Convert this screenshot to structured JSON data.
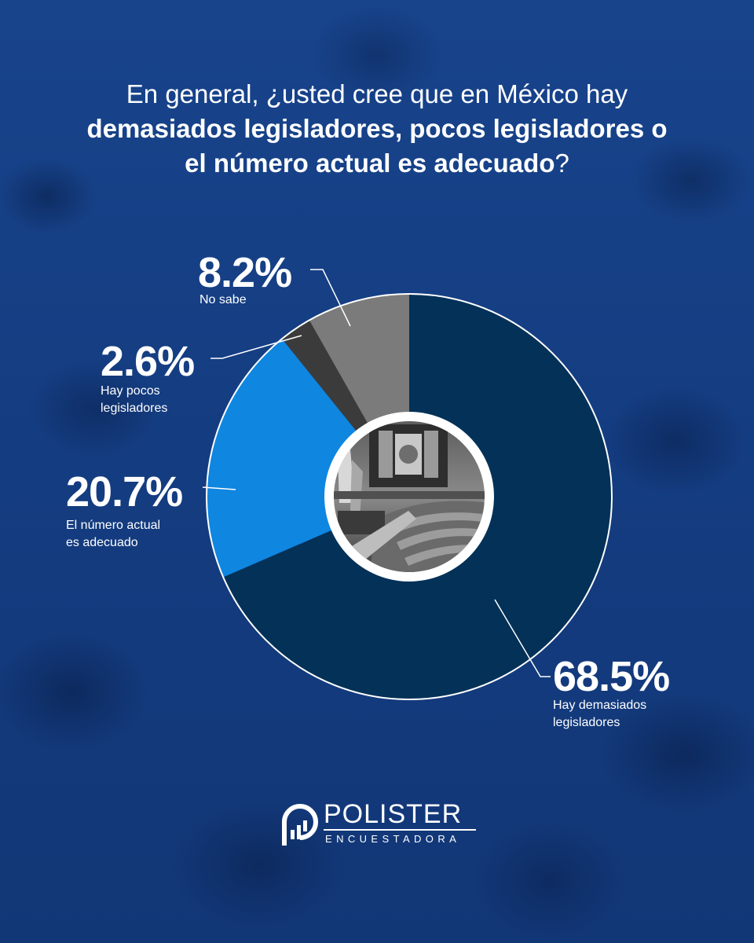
{
  "title": {
    "part1": "En general, ¿usted cree que en México hay",
    "part2": "demasiados legisladores, pocos legisladores o",
    "part3": "el número actual es adecuado",
    "part4": "?"
  },
  "chart_data": {
    "type": "pie",
    "variant": "donut",
    "slices": [
      {
        "label_pct": "68.5%",
        "value": 68.5,
        "caption_lines": [
          "Hay demasiados",
          "legisladores"
        ],
        "color": "#033158"
      },
      {
        "label_pct": "20.7%",
        "value": 20.7,
        "caption_lines": [
          "El número actual",
          "es adecuado"
        ],
        "color": "#0f86e0"
      },
      {
        "label_pct": "2.6%",
        "value": 2.6,
        "caption_lines": [
          "Hay pocos",
          "legisladores"
        ],
        "color": "#3b3b3b"
      },
      {
        "label_pct": "8.2%",
        "value": 8.2,
        "caption_lines": [
          "No sabe"
        ],
        "color": "#7b7b7b"
      }
    ],
    "start": "top, clockwise",
    "center_image": "parliament-chamber photo (grayscale)"
  },
  "colors": {
    "background": "#163f85",
    "text": "#ffffff"
  },
  "brand": {
    "name": "POLISTER",
    "tagline": "ENCUESTADORA",
    "icon": "bar-chart-arch-icon"
  }
}
